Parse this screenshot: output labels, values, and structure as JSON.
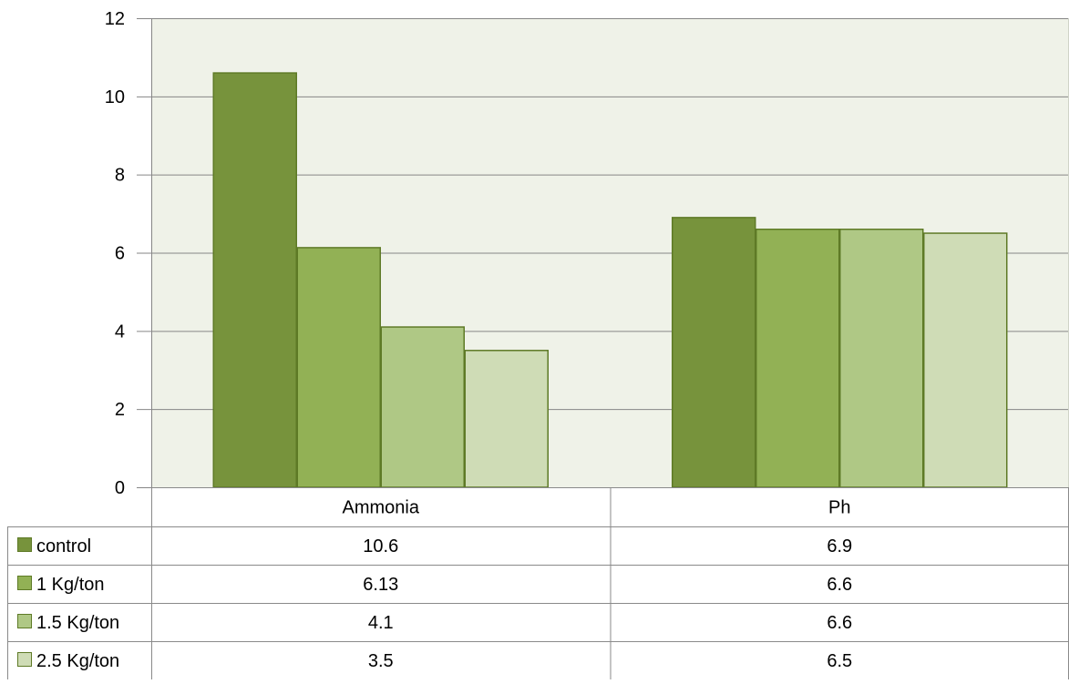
{
  "chart_data": {
    "type": "bar",
    "categories": [
      "Ammonia",
      "Ph"
    ],
    "series": [
      {
        "name": "control",
        "values": [
          10.6,
          6.9
        ],
        "value_labels": [
          "10.6",
          "6.9"
        ],
        "color": "#77933c"
      },
      {
        "name": "1 Kg/ton",
        "values": [
          6.13,
          6.6
        ],
        "value_labels": [
          "6.13",
          "6.6"
        ],
        "color": "#92b155"
      },
      {
        "name": "1.5 Kg/ton",
        "values": [
          4.1,
          6.6
        ],
        "value_labels": [
          "4.1",
          "6.6"
        ],
        "color": "#afc885"
      },
      {
        "name": "2.5 Kg/ton",
        "values": [
          3.5,
          6.5
        ],
        "value_labels": [
          "3.5",
          "6.5"
        ],
        "color": "#cfdcb6"
      }
    ],
    "ylim": [
      0,
      12
    ],
    "yticks": [
      0,
      2,
      4,
      6,
      8,
      10,
      12
    ],
    "grid": true,
    "legend": "data-table",
    "plot_background": "#eff2e8",
    "gridline_color": "#868686",
    "bar_outline_color": "#5e7a26"
  }
}
